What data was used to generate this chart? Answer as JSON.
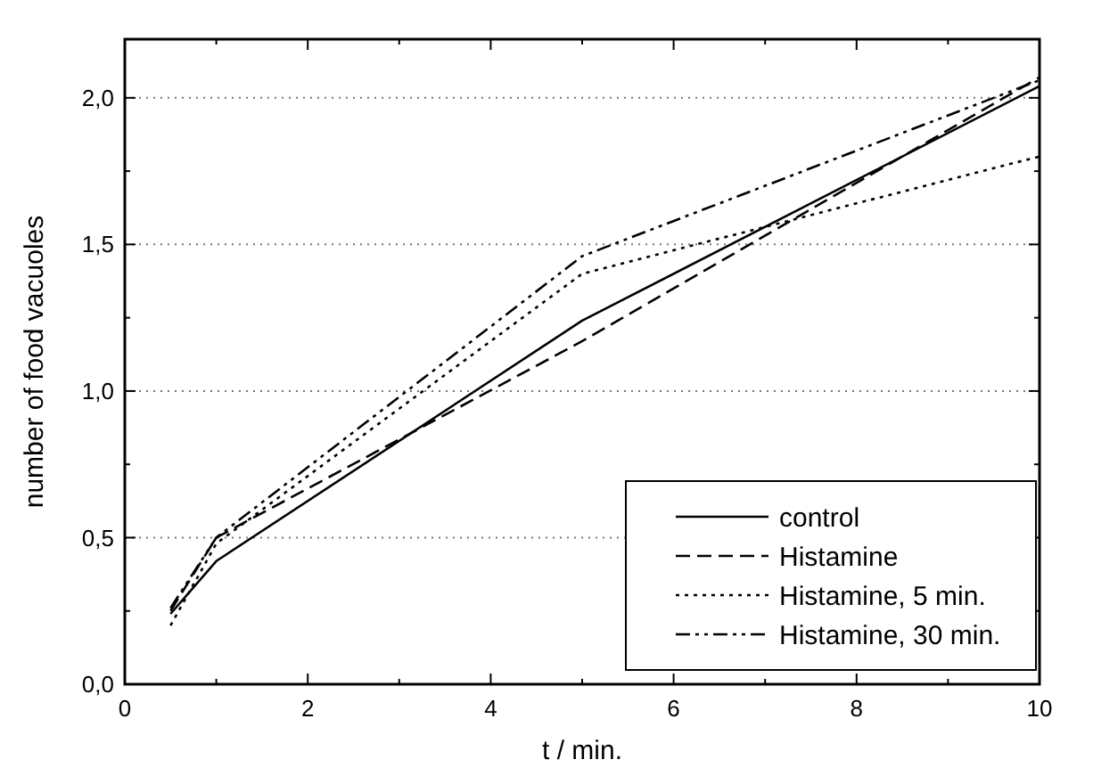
{
  "chart_data": {
    "type": "line",
    "xlabel": "t / min.",
    "ylabel": "number of food vacuoles",
    "x": [
      0.5,
      1,
      5,
      10
    ],
    "series": [
      {
        "name": "control",
        "color": "#000000",
        "line_style": "solid",
        "values": [
          0.24,
          0.42,
          1.24,
          2.04
        ]
      },
      {
        "name": "Histamine",
        "color": "#000000",
        "line_style": "dashed",
        "values": [
          0.25,
          0.5,
          1.17,
          2.07
        ]
      },
      {
        "name": "Histamine, 5 min.",
        "color": "#000000",
        "line_style": "dotted",
        "values": [
          0.2,
          0.48,
          1.4,
          1.8
        ]
      },
      {
        "name": "Histamine, 30 min.",
        "color": "#000000",
        "line_style": "dashdot",
        "values": [
          0.26,
          0.5,
          1.46,
          2.06
        ]
      }
    ],
    "xlim": [
      0,
      10
    ],
    "xticks": [
      0,
      2,
      4,
      6,
      8,
      10
    ],
    "ylim": [
      0,
      2.2
    ],
    "yticks": [
      {
        "value": 0,
        "label": "0,0"
      },
      {
        "value": 0.5,
        "label": "0,5"
      },
      {
        "value": 1,
        "label": "1,0"
      },
      {
        "value": 1.5,
        "label": "1,5"
      },
      {
        "value": 2,
        "label": "2,0"
      }
    ],
    "grid": "y",
    "legend": "bottom right",
    "marker": "none"
  }
}
